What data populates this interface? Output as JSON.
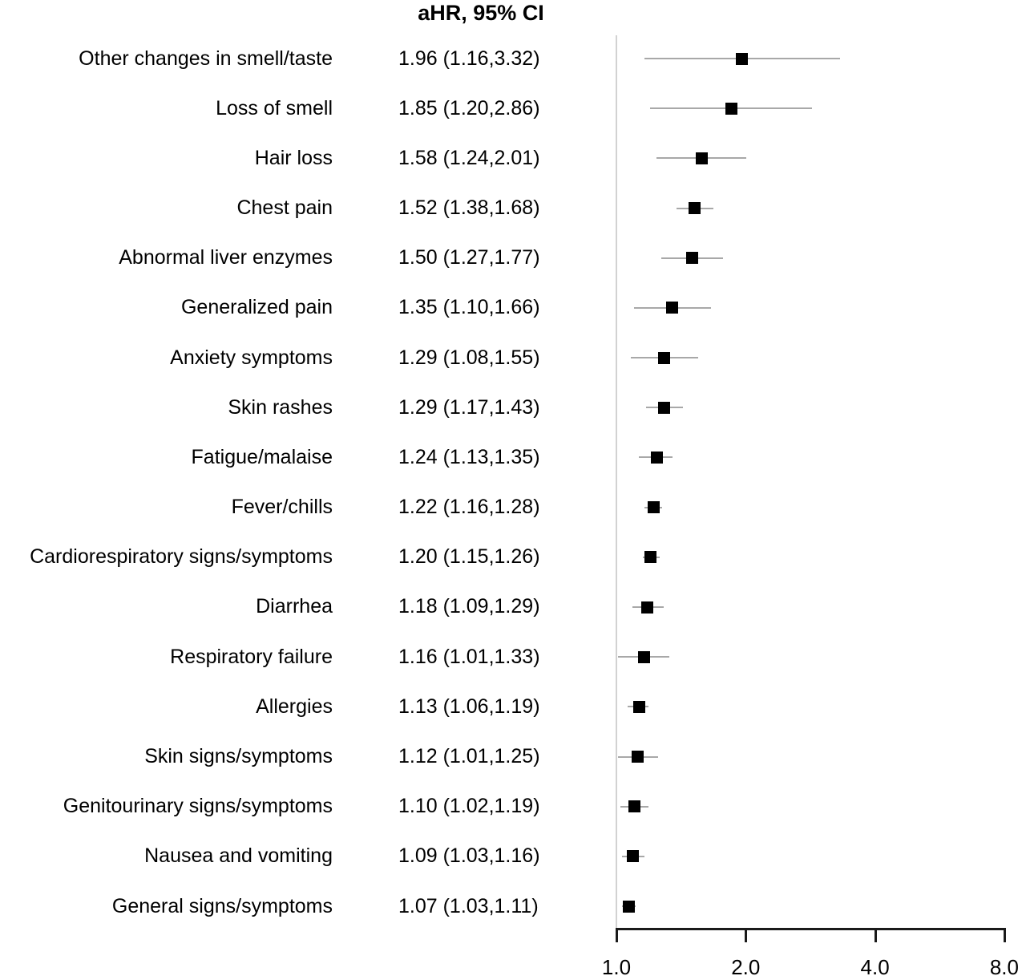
{
  "chart_data": {
    "type": "forest",
    "title": "aHR, 95% CI",
    "x_scale": "log2",
    "xlim": [
      1.0,
      8.0
    ],
    "x_ticks": [
      1.0,
      2.0,
      4.0,
      8.0
    ],
    "x_tick_labels": [
      "1.0",
      "2.0",
      "4.0",
      "8.0"
    ],
    "reference_line": 1.0,
    "grid": false,
    "legend": "none",
    "rows": [
      {
        "label": "Other changes in smell/taste",
        "ahr": 1.96,
        "ci_low": 1.16,
        "ci_high": 3.32,
        "estimate_text": "1.96 (1.16,3.32)"
      },
      {
        "label": "Loss of smell",
        "ahr": 1.85,
        "ci_low": 1.2,
        "ci_high": 2.86,
        "estimate_text": "1.85 (1.20,2.86)"
      },
      {
        "label": "Hair loss",
        "ahr": 1.58,
        "ci_low": 1.24,
        "ci_high": 2.01,
        "estimate_text": "1.58 (1.24,2.01)"
      },
      {
        "label": "Chest pain",
        "ahr": 1.52,
        "ci_low": 1.38,
        "ci_high": 1.68,
        "estimate_text": "1.52 (1.38,1.68)"
      },
      {
        "label": "Abnormal liver enzymes",
        "ahr": 1.5,
        "ci_low": 1.27,
        "ci_high": 1.77,
        "estimate_text": "1.50 (1.27,1.77)"
      },
      {
        "label": "Generalized pain",
        "ahr": 1.35,
        "ci_low": 1.1,
        "ci_high": 1.66,
        "estimate_text": "1.35 (1.10,1.66)"
      },
      {
        "label": "Anxiety symptoms",
        "ahr": 1.29,
        "ci_low": 1.08,
        "ci_high": 1.55,
        "estimate_text": "1.29 (1.08,1.55)"
      },
      {
        "label": "Skin rashes",
        "ahr": 1.29,
        "ci_low": 1.17,
        "ci_high": 1.43,
        "estimate_text": "1.29 (1.17,1.43)"
      },
      {
        "label": "Fatigue/malaise",
        "ahr": 1.24,
        "ci_low": 1.13,
        "ci_high": 1.35,
        "estimate_text": "1.24 (1.13,1.35)"
      },
      {
        "label": "Fever/chills",
        "ahr": 1.22,
        "ci_low": 1.16,
        "ci_high": 1.28,
        "estimate_text": "1.22 (1.16,1.28)"
      },
      {
        "label": "Cardiorespiratory signs/symptoms",
        "ahr": 1.2,
        "ci_low": 1.15,
        "ci_high": 1.26,
        "estimate_text": "1.20 (1.15,1.26)"
      },
      {
        "label": "Diarrhea",
        "ahr": 1.18,
        "ci_low": 1.09,
        "ci_high": 1.29,
        "estimate_text": "1.18 (1.09,1.29)"
      },
      {
        "label": "Respiratory failure",
        "ahr": 1.16,
        "ci_low": 1.01,
        "ci_high": 1.33,
        "estimate_text": "1.16 (1.01,1.33)"
      },
      {
        "label": "Allergies",
        "ahr": 1.13,
        "ci_low": 1.06,
        "ci_high": 1.19,
        "estimate_text": "1.13 (1.06,1.19)"
      },
      {
        "label": "Skin signs/symptoms",
        "ahr": 1.12,
        "ci_low": 1.01,
        "ci_high": 1.25,
        "estimate_text": "1.12 (1.01,1.25)"
      },
      {
        "label": "Genitourinary signs/symptoms",
        "ahr": 1.1,
        "ci_low": 1.02,
        "ci_high": 1.19,
        "estimate_text": "1.10 (1.02,1.19)"
      },
      {
        "label": "Nausea and vomiting",
        "ahr": 1.09,
        "ci_low": 1.03,
        "ci_high": 1.16,
        "estimate_text": "1.09 (1.03,1.16)"
      },
      {
        "label": "General signs/symptoms",
        "ahr": 1.07,
        "ci_low": 1.03,
        "ci_high": 1.11,
        "estimate_text": "1.07 (1.03,1.11)"
      }
    ]
  },
  "colors": {
    "background": "#ffffff",
    "text": "#000000",
    "marker": "#000000",
    "ci_line": "#a8a8a8",
    "reference_line": "#d2d2d2",
    "axis": "#1a1a1a"
  }
}
